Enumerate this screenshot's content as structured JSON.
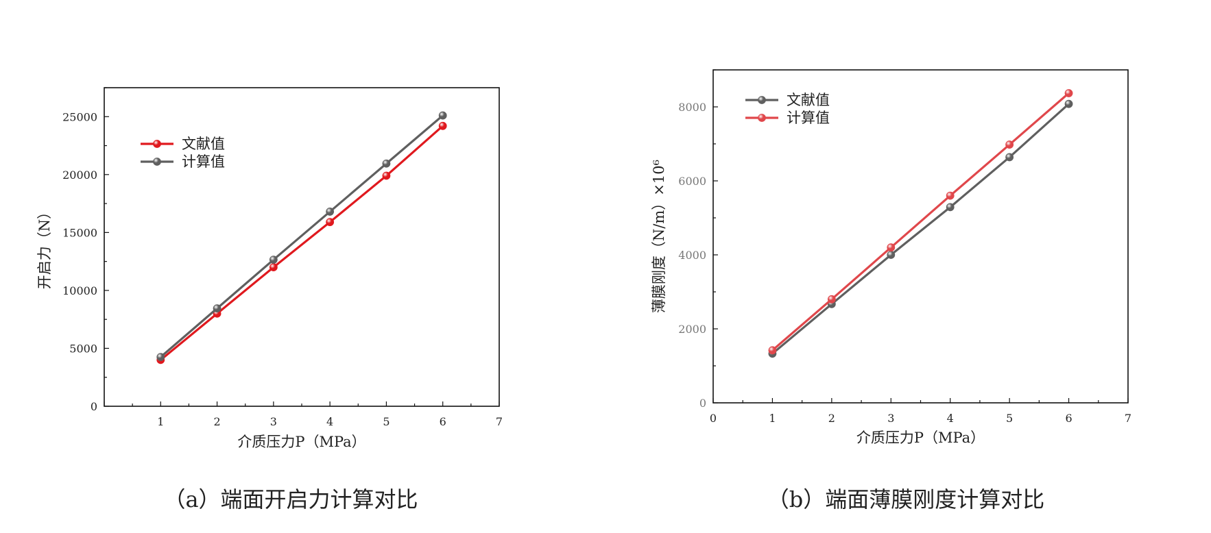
{
  "chart_data": [
    {
      "type": "line",
      "caption": "（a）端面开启力计算对比",
      "xlabel": "介质压力P（MPa）",
      "ylabel": "开启力（N）",
      "xlim": [
        0,
        7
      ],
      "ylim": [
        0,
        27500
      ],
      "x_ticks": [
        1,
        2,
        3,
        4,
        5,
        6,
        7
      ],
      "y_ticks": [
        0,
        5000,
        10000,
        15000,
        20000,
        25000
      ],
      "grid": false,
      "legend_position": "top-left",
      "x": [
        1,
        2,
        3,
        4,
        5,
        6
      ],
      "series": [
        {
          "name": "文献值",
          "color": "#e0191e",
          "values": [
            4000,
            8000,
            12000,
            15900,
            19900,
            24200
          ]
        },
        {
          "name": "计算值",
          "color": "#5f5f5f",
          "values": [
            4250,
            8450,
            12650,
            16800,
            20950,
            25100
          ]
        }
      ]
    },
    {
      "type": "line",
      "caption": "（b）端面薄膜刚度计算对比",
      "xlabel": "介质压力P（MPa）",
      "ylabel": "薄膜刚度（N/m）×10⁶",
      "xlim": [
        0,
        7
      ],
      "ylim": [
        0,
        9000
      ],
      "x_ticks": [
        0,
        1,
        2,
        3,
        4,
        5,
        6,
        7
      ],
      "y_ticks": [
        0,
        2000,
        4000,
        6000,
        8000
      ],
      "grid": false,
      "legend_position": "top-left",
      "x": [
        1,
        2,
        3,
        4,
        5,
        6
      ],
      "series": [
        {
          "name": "文献值",
          "color": "#5f5f5f",
          "values": [
            1330,
            2670,
            4000,
            5290,
            6640,
            8080
          ]
        },
        {
          "name": "计算值",
          "color": "#e0474b",
          "values": [
            1420,
            2800,
            4200,
            5600,
            6980,
            8370
          ]
        }
      ]
    }
  ]
}
